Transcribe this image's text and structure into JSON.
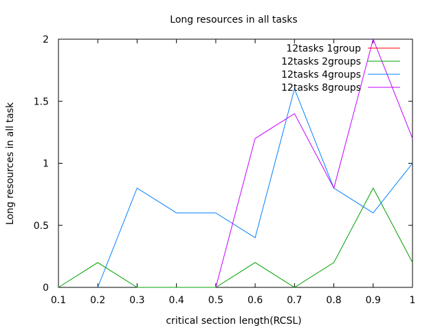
{
  "chart_data": {
    "type": "line",
    "title": "Long resources in all tasks",
    "xlabel": "critical section length(RCSL)",
    "ylabel": "Long resources in all task",
    "xlim": [
      0.1,
      1
    ],
    "ylim": [
      0,
      2
    ],
    "x_ticks": [
      "0.1",
      "0.2",
      "0.3",
      "0.4",
      "0.5",
      "0.6",
      "0.7",
      "0.8",
      "0.9",
      "1"
    ],
    "x_tick_values": [
      0.1,
      0.2,
      0.3,
      0.4,
      0.5,
      0.6,
      0.7,
      0.8,
      0.9,
      1.0
    ],
    "y_ticks": [
      "0",
      "0.5",
      "1",
      "1.5",
      "2"
    ],
    "y_tick_values": [
      0,
      0.5,
      1,
      1.5,
      2
    ],
    "grid": false,
    "legend_position": "top-right",
    "series": [
      {
        "name": "12tasks 1group",
        "color": "#ff0000",
        "x": [],
        "y": []
      },
      {
        "name": "12tasks 2groups",
        "color": "#00a000",
        "x": [
          0.1,
          0.2,
          0.3,
          0.4,
          0.5,
          0.6,
          0.7,
          0.8,
          0.9,
          1.0
        ],
        "y": [
          0,
          0.2,
          0,
          0,
          0,
          0.2,
          0,
          0.2,
          0.8,
          0.2
        ]
      },
      {
        "name": "12tasks 4groups",
        "color": "#0080ff",
        "x": [
          0.2,
          0.3,
          0.4,
          0.5,
          0.6,
          0.7,
          0.8,
          0.9,
          1.0
        ],
        "y": [
          0,
          0.8,
          0.6,
          0.6,
          0.4,
          1.6,
          0.8,
          0.6,
          1.0
        ]
      },
      {
        "name": "12tasks 8groups",
        "color": "#c000ff",
        "x": [
          0.5,
          0.6,
          0.7,
          0.8,
          0.9,
          1.0
        ],
        "y": [
          0,
          1.2,
          1.4,
          0.8,
          2.0,
          1.2
        ]
      }
    ]
  }
}
